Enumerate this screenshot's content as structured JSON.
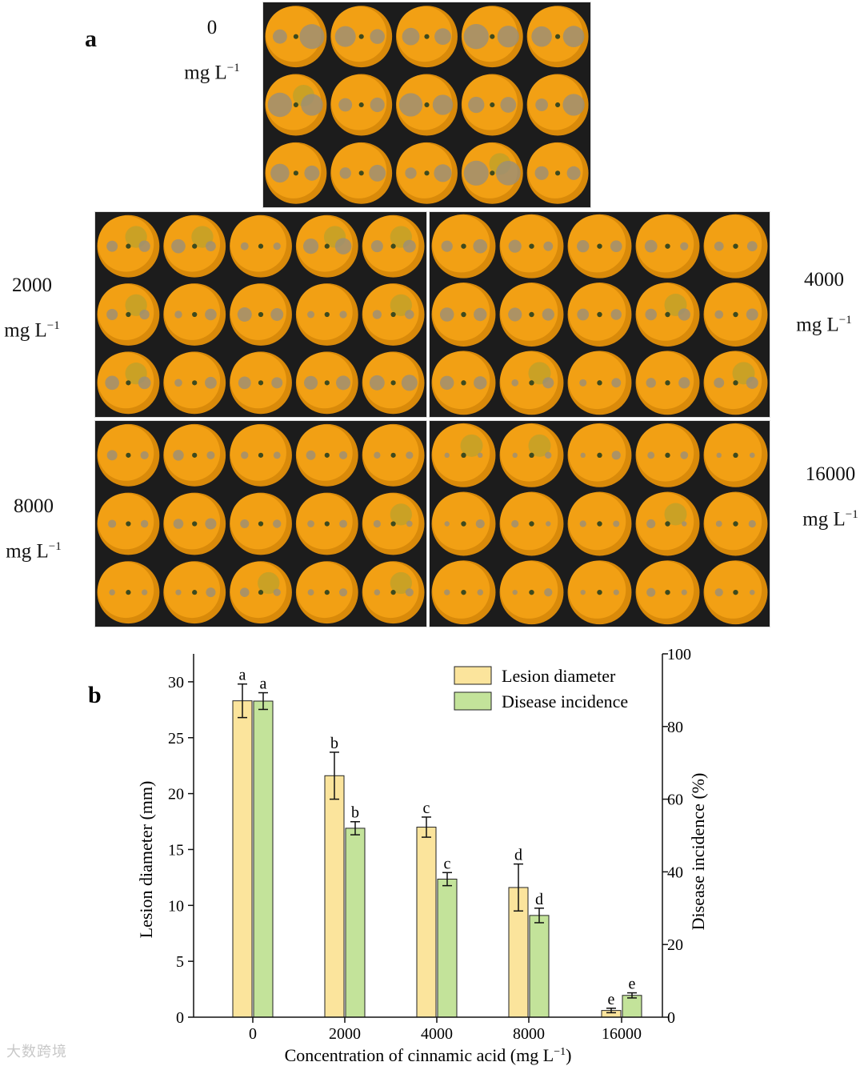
{
  "panel_a": {
    "letter": "a",
    "groups": [
      {
        "value": "0",
        "unit": "mg L",
        "unit_exp": "−1"
      },
      {
        "value": "2000",
        "unit": "mg L",
        "unit_exp": "−1"
      },
      {
        "value": "4000",
        "unit": "mg L",
        "unit_exp": "−1"
      },
      {
        "value": "8000",
        "unit": "mg L",
        "unit_exp": "−1"
      },
      {
        "value": "16000",
        "unit": "mg L",
        "unit_exp": "−1"
      }
    ],
    "colors": {
      "fruit": "#f2a014",
      "fruit_dark": "#d98a0a",
      "background": "#1c1c1c",
      "lesion": "#9a8f78"
    }
  },
  "chart_data": {
    "letter": "b",
    "type": "bar",
    "categories": [
      "0",
      "2000",
      "4000",
      "8000",
      "16000"
    ],
    "series": [
      {
        "name": "Lesion diameter",
        "axis": "left",
        "color": "#fbe49c",
        "values": [
          28.3,
          21.6,
          17.0,
          11.6,
          0.6
        ],
        "errors": [
          1.5,
          2.1,
          0.9,
          2.1,
          0.2
        ],
        "letters": [
          "a",
          "b",
          "c",
          "d",
          "e"
        ]
      },
      {
        "name": "Disease incidence",
        "axis": "right",
        "color": "#c3e39a",
        "values": [
          87,
          52,
          38,
          28,
          6
        ],
        "errors": [
          2.3,
          1.8,
          1.8,
          2.0,
          0.7
        ],
        "letters": [
          "a",
          "b",
          "c",
          "d",
          "e"
        ]
      }
    ],
    "xlabel": "Concentration of cinnamic acid (mg L",
    "xlabel_exp": "−1",
    "xlabel_close": ")",
    "ylabel_left": "Lesion diameter (mm)",
    "ylabel_right": "Disease incidence (%)",
    "ylim_left": [
      0,
      32.5
    ],
    "ylim_right": [
      0,
      100
    ],
    "yticks_left": [
      0,
      5,
      10,
      15,
      20,
      25,
      30
    ],
    "yticks_right": [
      0,
      20,
      40,
      60,
      80,
      100
    ],
    "legend": "top-right"
  },
  "watermark": "大数跨境"
}
